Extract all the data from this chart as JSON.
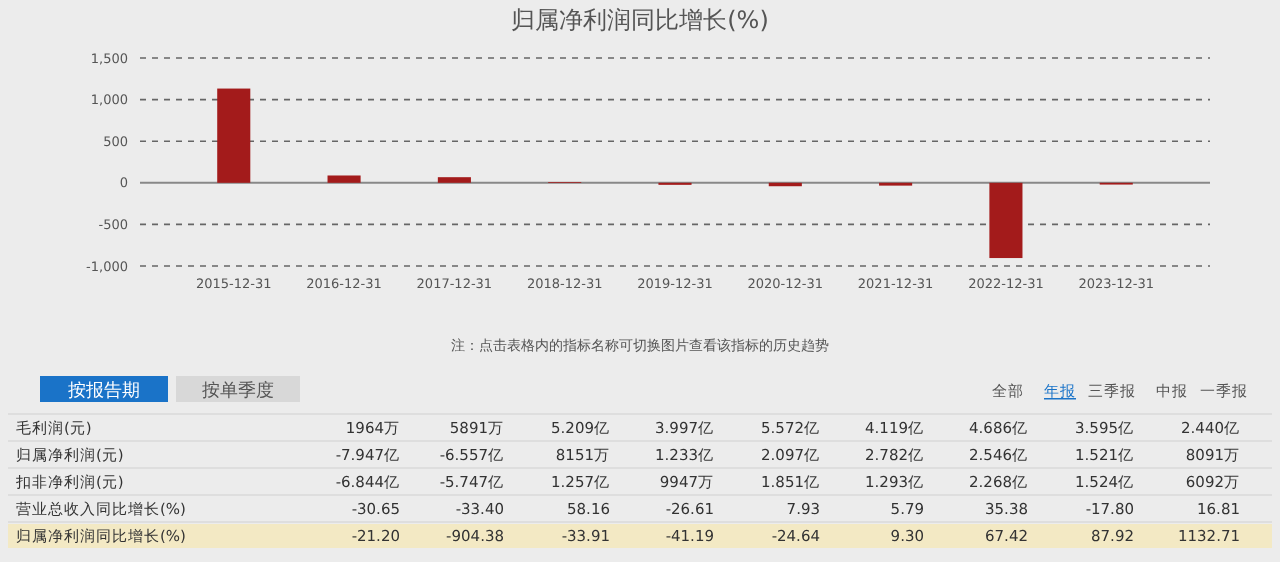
{
  "chart_data": [
    {
      "type": "bar",
      "title": "归属净利润同比增长(%)",
      "categories": [
        "2015-12-31",
        "2016-12-31",
        "2017-12-31",
        "2018-12-31",
        "2019-12-31",
        "2020-12-31",
        "2021-12-31",
        "2022-12-31",
        "2023-12-31"
      ],
      "values": [
        1132.71,
        87.92,
        67.42,
        9.3,
        -24.64,
        -41.19,
        -33.91,
        -904.38,
        -21.2
      ],
      "color": "#a31b1b",
      "ylim": [
        -1000,
        1500
      ],
      "yticks": [
        {
          "value": -1000,
          "label": "-1,000"
        },
        -500,
        0,
        500,
        {
          "value": 1000,
          "label": "1,000"
        },
        {
          "value": 1500,
          "label": "1,500"
        }
      ],
      "grid": "y"
    },
    {
      "type": "other",
      "annotations": [
        "注：点击表格内的指标名称可切换图片查看该指标的历史趋势",
        "按报告期",
        "按单季度",
        "全部",
        "年报",
        "三季报",
        "中报",
        "一季报"
      ],
      "y_categories": [
        "毛利润(元)",
        "归属净利润(元)",
        "扣非净利润(元)",
        "营业总收入同比增长(%)",
        "归属净利润同比增长(%)"
      ],
      "cell_labels": [
        [
          "1964万",
          "5891万",
          "5.209亿",
          "3.997亿",
          "5.572亿",
          "4.119亿",
          "4.686亿",
          "3.595亿",
          "2.440亿"
        ],
        [
          "-7.947亿",
          "-6.557亿",
          "8151万",
          "1.233亿",
          "2.097亿",
          "2.782亿",
          "2.546亿",
          "1.521亿",
          "8091万"
        ],
        [
          "-6.844亿",
          "-5.747亿",
          "1.257亿",
          "9947万",
          "1.851亿",
          "1.293亿",
          "2.268亿",
          "1.524亿",
          "6092万"
        ],
        [
          "-30.65",
          "-33.40",
          "58.16",
          "-26.61",
          "7.93",
          "5.79",
          "35.38",
          "-17.80",
          "16.81"
        ],
        [
          "-21.20",
          "-904.38",
          "-33.91",
          "-41.19",
          "-24.64",
          "9.30",
          "67.42",
          "87.92",
          "1132.71"
        ]
      ]
    }
  ]
}
